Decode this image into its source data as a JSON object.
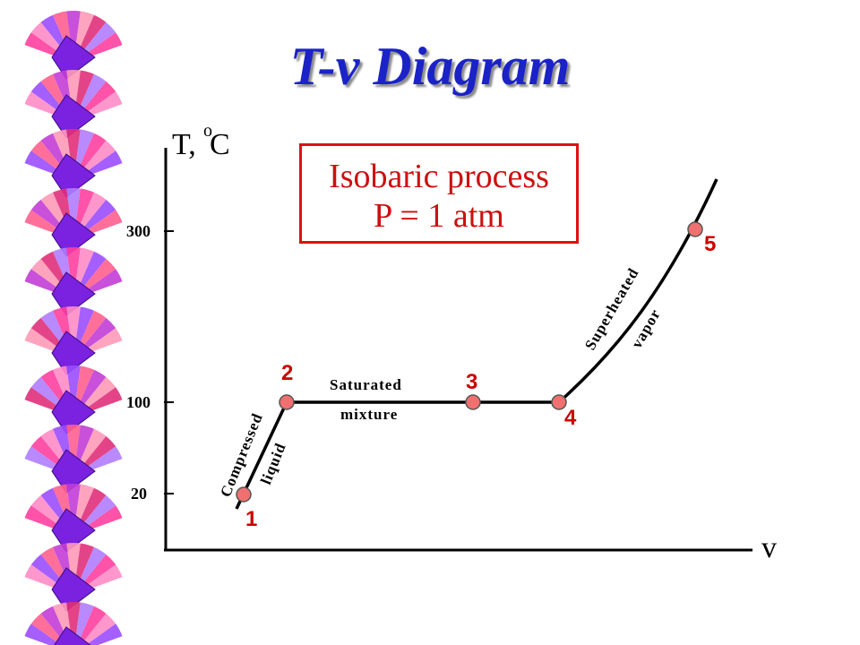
{
  "title": "T-v Diagram",
  "process_box": {
    "line1": "Isobaric process",
    "line2": "P = 1 atm"
  },
  "axes": {
    "y_label_T": "T,",
    "y_label_C": "C",
    "y_label_degree": "o",
    "x_label": "v",
    "ticks": [
      "300",
      "100",
      "20"
    ]
  },
  "points": [
    "1",
    "2",
    "3",
    "4",
    "5"
  ],
  "regions": {
    "compressed_1": "Compressed",
    "compressed_2": "liquid",
    "saturated_1": "Saturated",
    "saturated_2": "mixture",
    "superheated_1": "Superheated",
    "superheated_2": "vapor"
  },
  "colors": {
    "title": "#1a22c8",
    "accent": "#cc0000",
    "point_fill": "#f07070",
    "line": "#000000"
  }
}
